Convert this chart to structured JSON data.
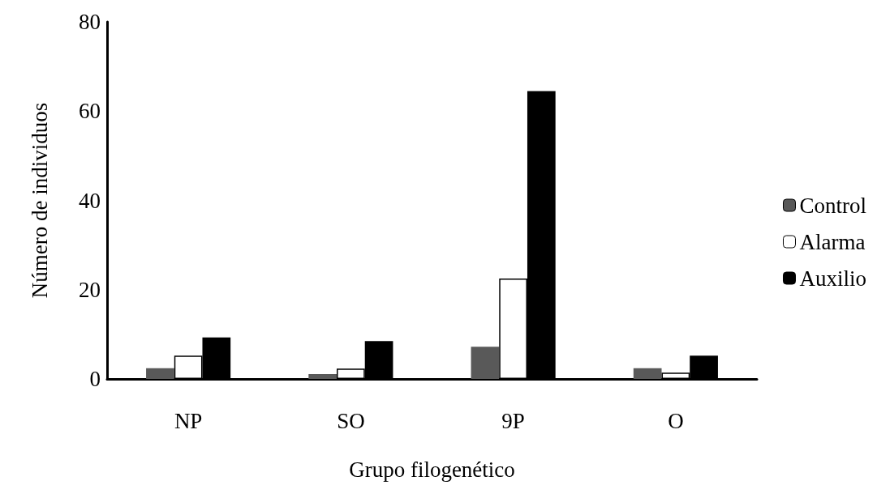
{
  "chart_data": {
    "type": "bar",
    "xlabel": "Grupo filogenético",
    "ylabel": "Número de individuos",
    "categories": [
      "NP",
      "SO",
      "9P",
      "O"
    ],
    "series": [
      {
        "name": "Control",
        "color": "#595959",
        "values": [
          2.4,
          1.1,
          7.2,
          2.4
        ]
      },
      {
        "name": "Alarma",
        "color": "#ffffff",
        "values": [
          5.2,
          2.3,
          22.5,
          1.4
        ]
      },
      {
        "name": "Auxilio",
        "color": "#000000",
        "values": [
          9.3,
          8.5,
          64.5,
          5.2
        ]
      }
    ],
    "ylim": [
      0,
      80
    ],
    "yticks": [
      0,
      20,
      40,
      60,
      80
    ],
    "grid": false,
    "legend": "right"
  }
}
